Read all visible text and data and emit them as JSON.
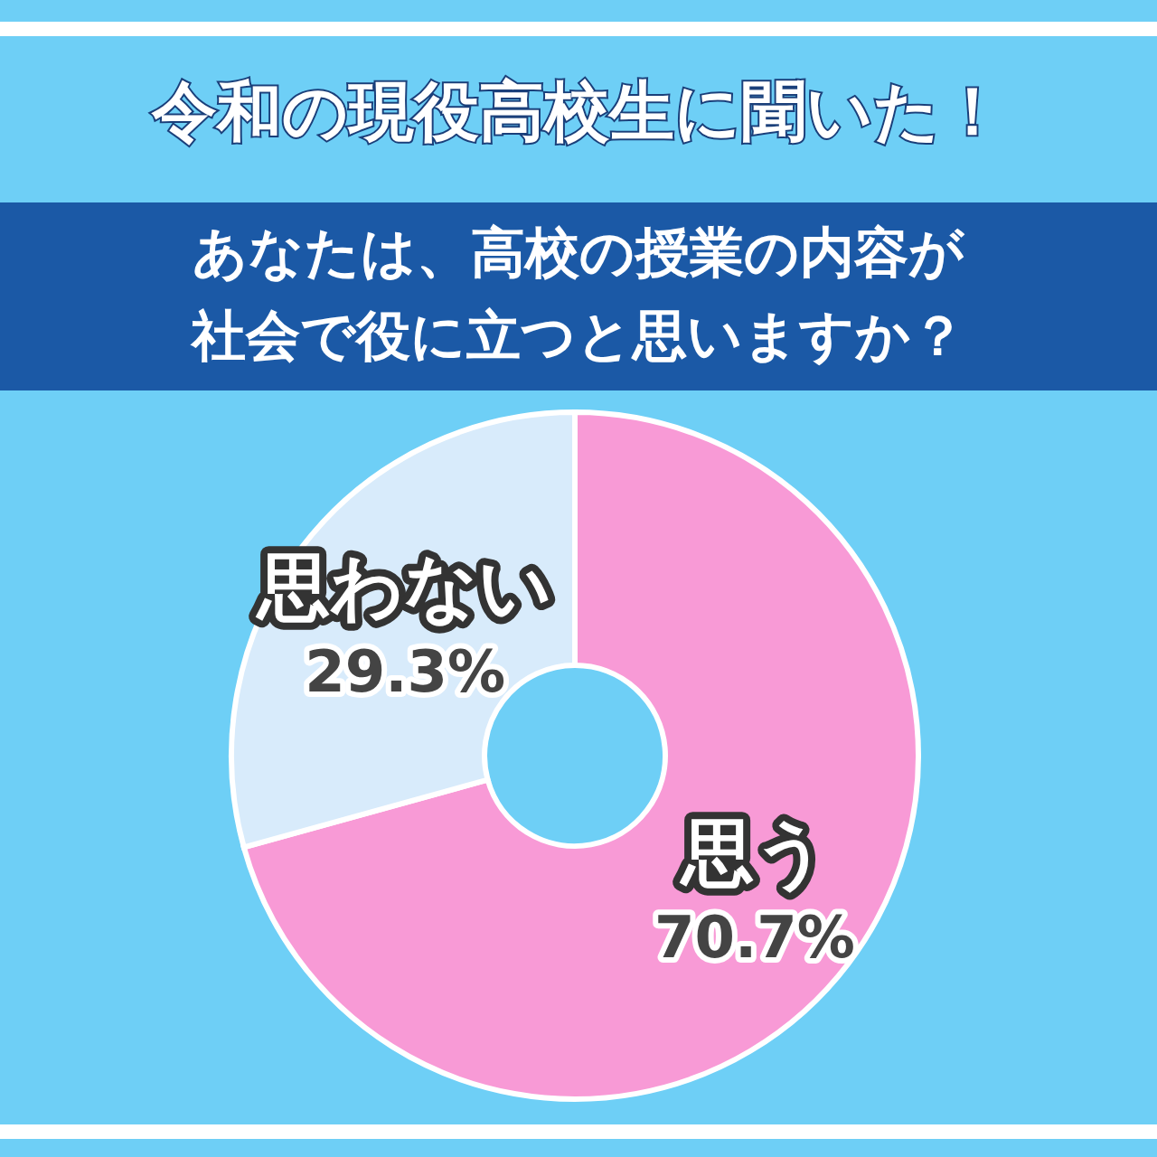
{
  "chart_data": {
    "type": "donut",
    "title": "令和の現役高校生に聞いた！",
    "subtitle": "あなたは、高校の授業の内容が社会で役に立つと思いますか？",
    "categories": [
      "思う",
      "思わない"
    ],
    "values": [
      70.7,
      29.3
    ],
    "colors": [
      "#f89ad6",
      "#d8ebfb"
    ],
    "value_labels": [
      "70.7%",
      "29.3%"
    ],
    "legend": false
  }
}
